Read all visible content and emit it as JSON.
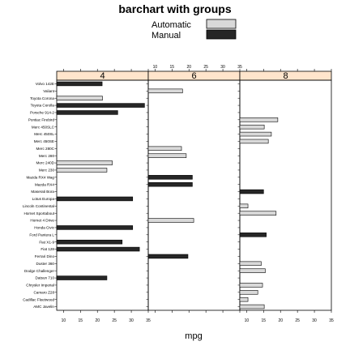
{
  "chart_data": {
    "type": "bar",
    "title": "barchart with groups",
    "xlabel": "mpg",
    "ylabel": "",
    "xlim": [
      8,
      35
    ],
    "xticks": [
      10,
      15,
      20,
      25,
      30,
      35
    ],
    "legend": {
      "placement": "top",
      "entries": [
        {
          "name": "Automatic",
          "color": "#d9d9d9"
        },
        {
          "name": "Manual",
          "color": "#262626"
        }
      ]
    },
    "panels": [
      "4",
      "6",
      "8"
    ],
    "categories": [
      "Volvo 142E",
      "Valiant",
      "Toyota Corona",
      "Toyota Corolla",
      "Porsche 914-2",
      "Pontiac Firebird",
      "Merc 450SLC",
      "Merc 450SL",
      "Merc 450SE",
      "Merc 280C",
      "Merc 280",
      "Merc 240D",
      "Merc 230",
      "Mazda RX4 Wag",
      "Mazda RX4",
      "Maserati Bora",
      "Lotus Europa",
      "Lincoln Continental",
      "Hornet Sportabout",
      "Hornet 4 Drive",
      "Honda Civic",
      "Ford Pantera L",
      "Fiat X1-9",
      "Fiat 128",
      "Ferrari Dino",
      "Duster 360",
      "Dodge Challenger",
      "Datsun 710",
      "Chrysler Imperial",
      "Camaro Z28",
      "Cadillac Fleetwood",
      "AMC Javelin"
    ],
    "bars": [
      {
        "car": "Volvo 142E",
        "panel": "4",
        "mpg": 21.4,
        "am": "Manual"
      },
      {
        "car": "Valiant",
        "panel": "6",
        "mpg": 18.1,
        "am": "Automatic"
      },
      {
        "car": "Toyota Corona",
        "panel": "4",
        "mpg": 21.5,
        "am": "Automatic"
      },
      {
        "car": "Toyota Corolla",
        "panel": "4",
        "mpg": 33.9,
        "am": "Manual"
      },
      {
        "car": "Porsche 914-2",
        "panel": "4",
        "mpg": 26.0,
        "am": "Manual"
      },
      {
        "car": "Pontiac Firebird",
        "panel": "8",
        "mpg": 19.2,
        "am": "Automatic"
      },
      {
        "car": "Merc 450SLC",
        "panel": "8",
        "mpg": 15.2,
        "am": "Automatic"
      },
      {
        "car": "Merc 450SL",
        "panel": "8",
        "mpg": 17.3,
        "am": "Automatic"
      },
      {
        "car": "Merc 450SE",
        "panel": "8",
        "mpg": 16.4,
        "am": "Automatic"
      },
      {
        "car": "Merc 280C",
        "panel": "6",
        "mpg": 17.8,
        "am": "Automatic"
      },
      {
        "car": "Merc 280",
        "panel": "6",
        "mpg": 19.2,
        "am": "Automatic"
      },
      {
        "car": "Merc 240D",
        "panel": "4",
        "mpg": 24.4,
        "am": "Automatic"
      },
      {
        "car": "Merc 230",
        "panel": "4",
        "mpg": 22.8,
        "am": "Automatic"
      },
      {
        "car": "Mazda RX4 Wag",
        "panel": "6",
        "mpg": 21.0,
        "am": "Manual"
      },
      {
        "car": "Mazda RX4",
        "panel": "6",
        "mpg": 21.0,
        "am": "Manual"
      },
      {
        "car": "Maserati Bora",
        "panel": "8",
        "mpg": 15.0,
        "am": "Manual"
      },
      {
        "car": "Lotus Europa",
        "panel": "4",
        "mpg": 30.4,
        "am": "Manual"
      },
      {
        "car": "Lincoln Continental",
        "panel": "8",
        "mpg": 10.4,
        "am": "Automatic"
      },
      {
        "car": "Hornet Sportabout",
        "panel": "8",
        "mpg": 18.7,
        "am": "Automatic"
      },
      {
        "car": "Hornet 4 Drive",
        "panel": "6",
        "mpg": 21.4,
        "am": "Automatic"
      },
      {
        "car": "Honda Civic",
        "panel": "4",
        "mpg": 30.4,
        "am": "Manual"
      },
      {
        "car": "Ford Pantera L",
        "panel": "8",
        "mpg": 15.8,
        "am": "Manual"
      },
      {
        "car": "Fiat X1-9",
        "panel": "4",
        "mpg": 27.3,
        "am": "Manual"
      },
      {
        "car": "Fiat 128",
        "panel": "4",
        "mpg": 32.4,
        "am": "Manual"
      },
      {
        "car": "Ferrari Dino",
        "panel": "6",
        "mpg": 19.7,
        "am": "Manual"
      },
      {
        "car": "Duster 360",
        "panel": "8",
        "mpg": 14.3,
        "am": "Automatic"
      },
      {
        "car": "Dodge Challenger",
        "panel": "8",
        "mpg": 15.5,
        "am": "Automatic"
      },
      {
        "car": "Datsun 710",
        "panel": "4",
        "mpg": 22.8,
        "am": "Manual"
      },
      {
        "car": "Chrysler Imperial",
        "panel": "8",
        "mpg": 14.7,
        "am": "Automatic"
      },
      {
        "car": "Camaro Z28",
        "panel": "8",
        "mpg": 13.3,
        "am": "Automatic"
      },
      {
        "car": "Cadillac Fleetwood",
        "panel": "8",
        "mpg": 10.4,
        "am": "Automatic"
      },
      {
        "car": "AMC Javelin",
        "panel": "8",
        "mpg": 15.2,
        "am": "Automatic"
      }
    ],
    "strip_color": "#ffe5cc"
  }
}
